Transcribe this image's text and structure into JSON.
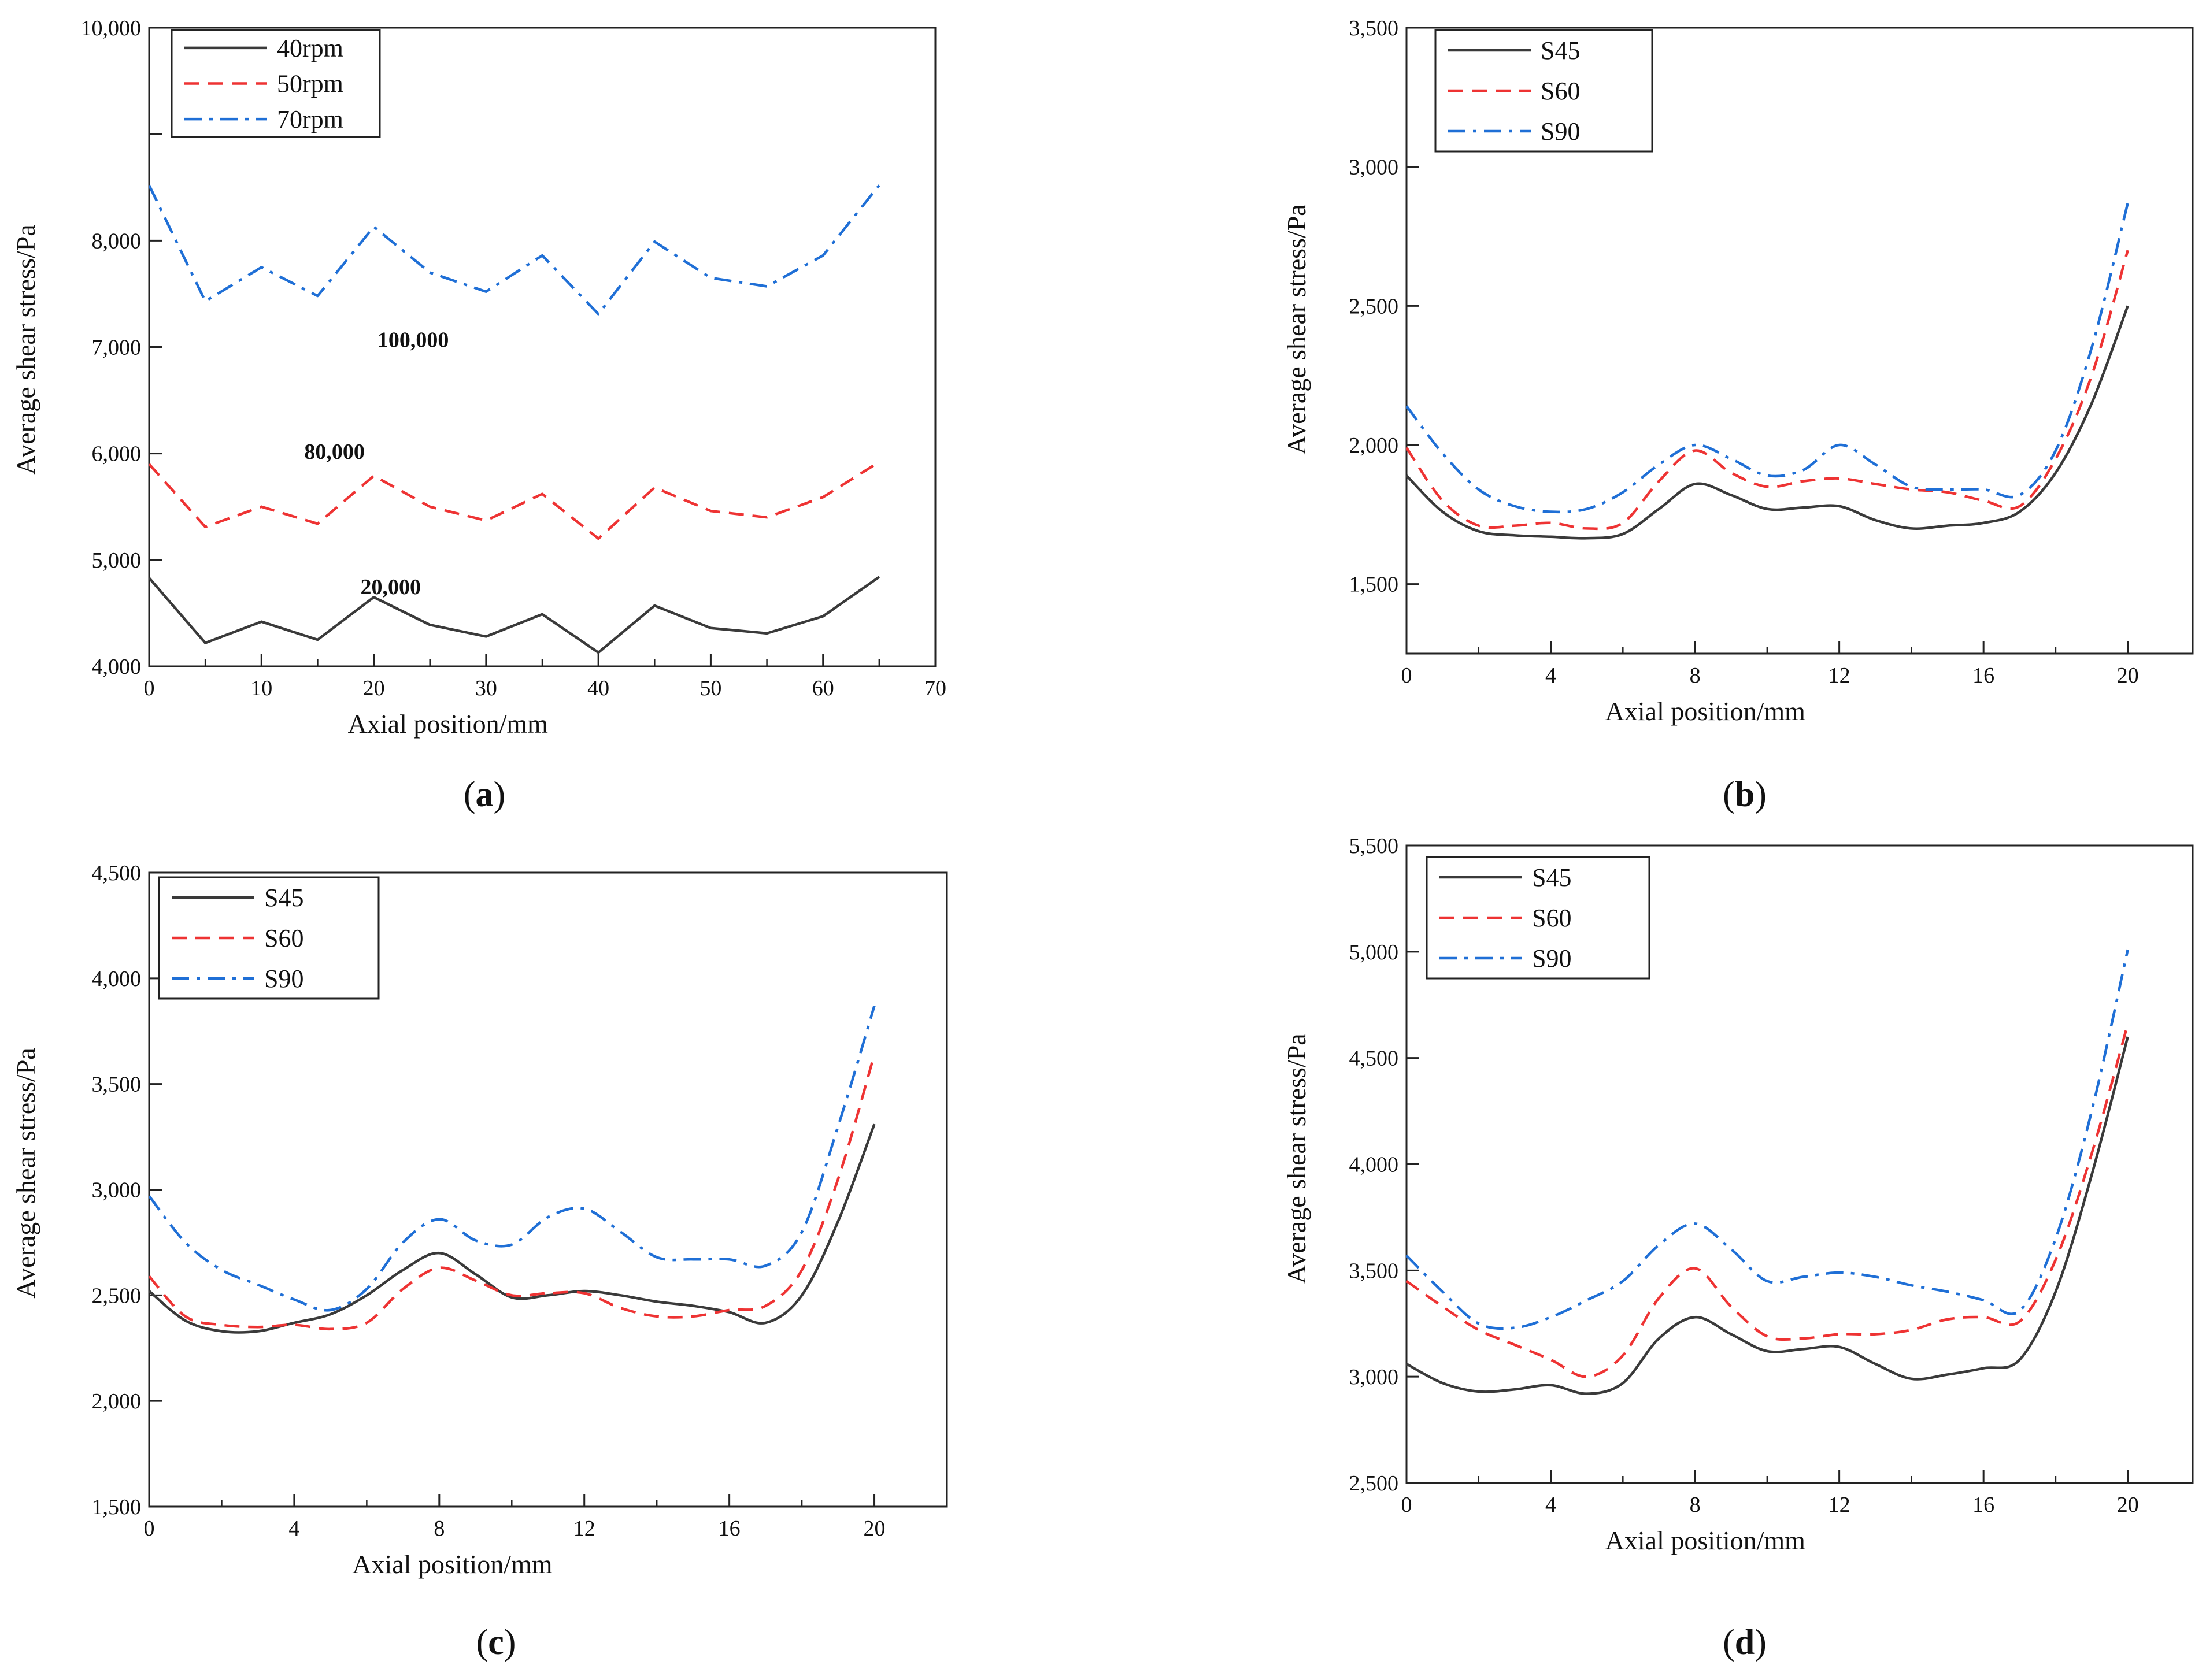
{
  "colors": {
    "black": "#3a3a3a",
    "red": "#ee3333",
    "blue": "#1f6fd6"
  },
  "chart_data": [
    {
      "id": "a",
      "type": "line",
      "caption": "a",
      "xlabel": "Axial position/mm",
      "ylabel": "Average shear stress/Pa",
      "xlim": [
        0,
        70
      ],
      "ylim": [
        4000,
        10000
      ],
      "xticks": [
        0,
        10,
        20,
        30,
        40,
        50,
        60,
        70
      ],
      "xtick_labels": [
        "0",
        "10",
        "20",
        "30",
        "40",
        "50",
        "60",
        "70"
      ],
      "yticks": [
        4000,
        5000,
        6000,
        7000,
        8000,
        9000,
        10000
      ],
      "ytick_labels": [
        "4,000",
        "5,000",
        "6,000",
        "7,000",
        "8,000",
        "",
        "10,000"
      ],
      "legend_position": "top-left",
      "series": [
        {
          "name": "40rpm",
          "style": "solid",
          "color": "#3a3a3a",
          "x": [
            0,
            5,
            10,
            15,
            20,
            25,
            30,
            35,
            40,
            45,
            50,
            55,
            60,
            65
          ],
          "y": [
            4830,
            4220,
            4420,
            4250,
            4650,
            4390,
            4280,
            4490,
            4130,
            4570,
            4360,
            4310,
            4470,
            4840
          ]
        },
        {
          "name": "50rpm",
          "style": "dashed",
          "color": "#ee3333",
          "x": [
            0,
            5,
            10,
            15,
            20,
            25,
            30,
            35,
            40,
            45,
            50,
            55,
            60,
            65
          ],
          "y": [
            5900,
            5310,
            5500,
            5340,
            5790,
            5500,
            5370,
            5620,
            5200,
            5680,
            5460,
            5400,
            5590,
            5920
          ]
        },
        {
          "name": "70rpm",
          "style": "dashdot",
          "color": "#1f6fd6",
          "x": [
            0,
            5,
            10,
            15,
            20,
            25,
            30,
            35,
            40,
            45,
            50,
            55,
            60,
            65
          ],
          "y": [
            8520,
            7430,
            7750,
            7480,
            8130,
            7700,
            7520,
            7860,
            7310,
            7990,
            7650,
            7570,
            7860,
            8520
          ]
        }
      ],
      "annotations": [
        {
          "text": "100,000",
          "x": 23.5,
          "y": 7000
        },
        {
          "text": "80,000",
          "x": 16.5,
          "y": 5950
        },
        {
          "text": "20,000",
          "x": 21.5,
          "y": 4680
        }
      ]
    },
    {
      "id": "b",
      "type": "line",
      "caption": "b",
      "xlabel": "Axial position/mm",
      "ylabel": "Average shear stress/Pa",
      "xlim": [
        0,
        21.8
      ],
      "ylim": [
        1250,
        3500
      ],
      "xticks": [
        0,
        4,
        8,
        12,
        16,
        20
      ],
      "xtick_labels": [
        "0",
        "4",
        "8",
        "12",
        "16",
        "20"
      ],
      "yticks": [
        1500,
        2000,
        2500,
        3000,
        3500
      ],
      "ytick_labels": [
        "1,500",
        "2,000",
        "2,500",
        "3,000",
        "3,500"
      ],
      "legend_position": "top-left",
      "series": [
        {
          "name": "S45",
          "style": "solid",
          "color": "#3a3a3a",
          "x": [
            0,
            1,
            2,
            3,
            4,
            5,
            6,
            7,
            8,
            9,
            10,
            11,
            12,
            13,
            14,
            15,
            16,
            17,
            18,
            19,
            20
          ],
          "y": [
            1890,
            1760,
            1690,
            1675,
            1670,
            1665,
            1680,
            1770,
            1860,
            1820,
            1770,
            1775,
            1780,
            1730,
            1700,
            1710,
            1720,
            1760,
            1900,
            2150,
            2500
          ]
        },
        {
          "name": "S60",
          "style": "dashed",
          "color": "#ee3333",
          "x": [
            0,
            1,
            2,
            3,
            4,
            5,
            6,
            7,
            8,
            9,
            10,
            11,
            12,
            13,
            14,
            15,
            16,
            17,
            18,
            19,
            20
          ],
          "y": [
            1990,
            1800,
            1710,
            1710,
            1720,
            1700,
            1720,
            1870,
            1980,
            1900,
            1850,
            1870,
            1880,
            1860,
            1840,
            1830,
            1800,
            1780,
            1950,
            2250,
            2700
          ]
        },
        {
          "name": "S90",
          "style": "dashdot",
          "color": "#1f6fd6",
          "x": [
            0,
            1,
            2,
            3,
            4,
            5,
            6,
            7,
            8,
            9,
            10,
            11,
            12,
            13,
            14,
            15,
            16,
            17,
            18,
            19,
            20
          ],
          "y": [
            2140,
            1970,
            1840,
            1780,
            1760,
            1770,
            1830,
            1930,
            2000,
            1950,
            1890,
            1910,
            2000,
            1930,
            1850,
            1840,
            1840,
            1820,
            1980,
            2350,
            2870
          ]
        }
      ]
    },
    {
      "id": "c",
      "type": "line",
      "caption": "c",
      "xlabel": "Axial position/mm",
      "ylabel": "Average shear stress/Pa",
      "xlim": [
        0,
        22
      ],
      "ylim": [
        1500,
        4500
      ],
      "xticks": [
        0,
        4,
        8,
        12,
        16,
        20
      ],
      "xtick_labels": [
        "0",
        "4",
        "8",
        "12",
        "16",
        "20"
      ],
      "yticks": [
        1500,
        2000,
        2500,
        3000,
        3500,
        4000,
        4500
      ],
      "ytick_labels": [
        "1,500",
        "2,000",
        "2,500",
        "3,000",
        "3,500",
        "4,000",
        "4,500"
      ],
      "legend_position": "top-left",
      "series": [
        {
          "name": "S45",
          "style": "solid",
          "color": "#3a3a3a",
          "x": [
            0,
            1,
            2,
            3,
            4,
            5,
            6,
            7,
            8,
            9,
            10,
            11,
            12,
            13,
            14,
            15,
            16,
            17,
            18,
            19,
            20
          ],
          "y": [
            2520,
            2380,
            2330,
            2330,
            2370,
            2410,
            2500,
            2620,
            2700,
            2600,
            2490,
            2500,
            2520,
            2500,
            2470,
            2450,
            2420,
            2370,
            2500,
            2850,
            3310
          ]
        },
        {
          "name": "S60",
          "style": "dashed",
          "color": "#ee3333",
          "x": [
            0,
            1,
            2,
            3,
            4,
            5,
            6,
            7,
            8,
            9,
            10,
            11,
            12,
            13,
            14,
            15,
            16,
            17,
            18,
            19,
            20
          ],
          "y": [
            2590,
            2400,
            2360,
            2350,
            2360,
            2340,
            2370,
            2530,
            2630,
            2570,
            2500,
            2510,
            2510,
            2440,
            2400,
            2400,
            2430,
            2450,
            2620,
            3050,
            3640
          ]
        },
        {
          "name": "S90",
          "style": "dashdot",
          "color": "#1f6fd6",
          "x": [
            0,
            1,
            2,
            3,
            4,
            5,
            6,
            7,
            8,
            9,
            10,
            11,
            12,
            13,
            14,
            15,
            16,
            17,
            18,
            19,
            20
          ],
          "y": [
            2970,
            2750,
            2620,
            2550,
            2480,
            2430,
            2530,
            2750,
            2860,
            2760,
            2740,
            2870,
            2910,
            2800,
            2680,
            2670,
            2670,
            2640,
            2800,
            3300,
            3870
          ]
        }
      ]
    },
    {
      "id": "d",
      "type": "line",
      "caption": "d",
      "xlabel": "Axial position/mm",
      "ylabel": "Average shear stress/Pa",
      "xlim": [
        0,
        21.8
      ],
      "ylim": [
        2500,
        5500
      ],
      "xticks": [
        0,
        4,
        8,
        12,
        16,
        20
      ],
      "xtick_labels": [
        "0",
        "4",
        "8",
        "12",
        "16",
        "20"
      ],
      "yticks": [
        2500,
        3000,
        3500,
        4000,
        4500,
        5000,
        5500
      ],
      "ytick_labels": [
        "2,500",
        "3,000",
        "3,500",
        "4,000",
        "4,500",
        "5,000",
        "5,500"
      ],
      "legend_position": "top-left",
      "series": [
        {
          "name": "S45",
          "style": "solid",
          "color": "#3a3a3a",
          "x": [
            0,
            1,
            2,
            3,
            4,
            5,
            6,
            7,
            8,
            9,
            10,
            11,
            12,
            13,
            14,
            15,
            16,
            17,
            18,
            19,
            20
          ],
          "y": [
            3060,
            2970,
            2930,
            2940,
            2960,
            2920,
            2970,
            3180,
            3280,
            3200,
            3120,
            3130,
            3140,
            3060,
            2990,
            3010,
            3040,
            3080,
            3400,
            3950,
            4600
          ]
        },
        {
          "name": "S60",
          "style": "dashed",
          "color": "#ee3333",
          "x": [
            0,
            1,
            2,
            3,
            4,
            5,
            6,
            7,
            8,
            9,
            10,
            11,
            12,
            13,
            14,
            15,
            16,
            17,
            18,
            19,
            20
          ],
          "y": [
            3450,
            3330,
            3220,
            3150,
            3080,
            3000,
            3100,
            3370,
            3510,
            3330,
            3190,
            3180,
            3200,
            3200,
            3220,
            3270,
            3280,
            3260,
            3550,
            4050,
            4660
          ]
        },
        {
          "name": "S90",
          "style": "dashdot",
          "color": "#1f6fd6",
          "x": [
            0,
            1,
            2,
            3,
            4,
            5,
            6,
            7,
            8,
            9,
            10,
            11,
            12,
            13,
            14,
            15,
            16,
            17,
            18,
            19,
            20
          ],
          "y": [
            3570,
            3400,
            3250,
            3230,
            3280,
            3360,
            3450,
            3620,
            3720,
            3600,
            3450,
            3470,
            3490,
            3470,
            3430,
            3400,
            3360,
            3310,
            3650,
            4250,
            5010
          ]
        }
      ]
    }
  ]
}
